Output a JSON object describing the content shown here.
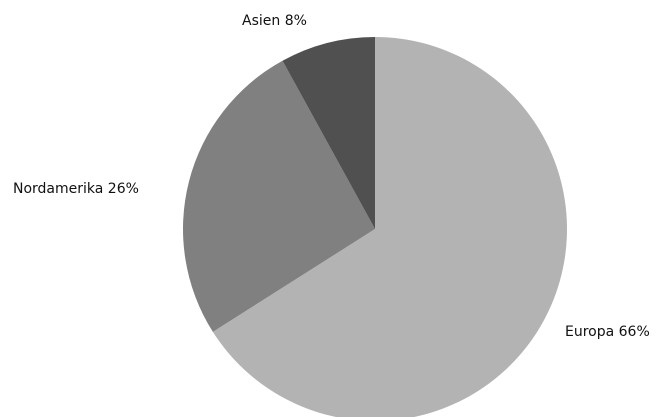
{
  "chart_data": {
    "type": "pie",
    "title": "",
    "slices": [
      {
        "label": "Europa",
        "value": 66,
        "display": "Europa 66%",
        "color": "#b3b3b3"
      },
      {
        "label": "Nordamerika",
        "value": 26,
        "display": "Nordamerika 26%",
        "color": "#808080"
      },
      {
        "label": "Asien",
        "value": 8,
        "display": "Asien 8%",
        "color": "#505050"
      }
    ],
    "legend": "none",
    "start": "top, clockwise"
  }
}
